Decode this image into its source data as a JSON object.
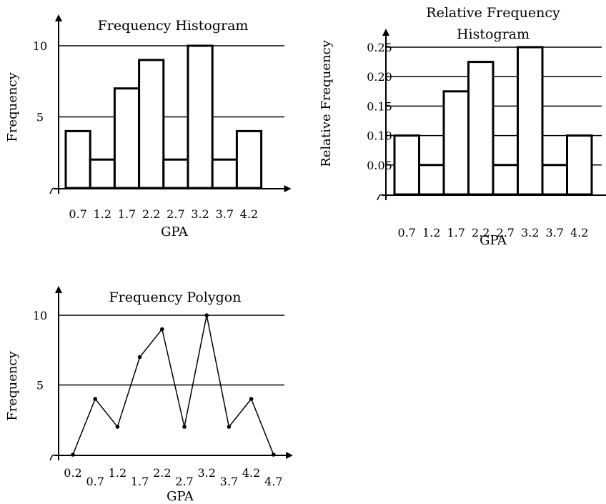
{
  "chart_data": [
    {
      "type": "bar",
      "title": "Frequency Histogram",
      "xlabel": "GPA",
      "ylabel": "Frequency",
      "categories": [
        "0.7",
        "1.2",
        "1.7",
        "2.2",
        "2.7",
        "3.2",
        "3.7",
        "4.2"
      ],
      "values": [
        4,
        2,
        7,
        9,
        2,
        10,
        2,
        4
      ],
      "yticks": [
        "5",
        "10"
      ],
      "ylim": [
        0,
        11
      ],
      "grid": true
    },
    {
      "type": "bar",
      "title_lines": [
        "Relative Frequency",
        "Histogram"
      ],
      "xlabel": "GPA",
      "ylabel": "Relative Frequency",
      "categories": [
        "0.7",
        "1.2",
        "1.7",
        "2.2",
        "2.7",
        "3.2",
        "3.7",
        "4.2"
      ],
      "values": [
        0.1,
        0.05,
        0.175,
        0.225,
        0.05,
        0.25,
        0.05,
        0.1
      ],
      "yticks": [
        "0.05",
        "0.10",
        "0.15",
        "0.20",
        "0.25"
      ],
      "ylim": [
        0,
        0.27
      ],
      "grid": true
    },
    {
      "type": "line",
      "title": "Frequency Polygon",
      "xlabel": "GPA",
      "ylabel": "Frequency",
      "x": [
        "0.2",
        "0.7",
        "1.2",
        "1.7",
        "2.2",
        "2.7",
        "3.2",
        "3.7",
        "4.2",
        "4.7"
      ],
      "y": [
        0,
        4,
        2,
        7,
        9,
        2,
        10,
        2,
        4,
        0
      ],
      "yticks": [
        "5",
        "10"
      ],
      "ylim": [
        0,
        11
      ],
      "grid": true
    }
  ]
}
